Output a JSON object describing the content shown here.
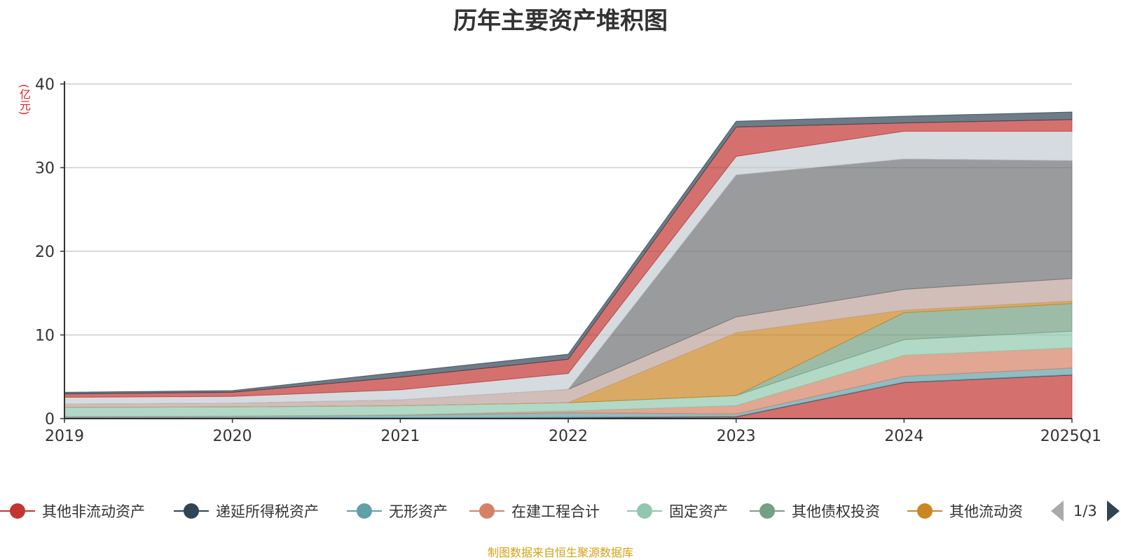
{
  "chart_data": {
    "type": "area",
    "title": "历年主要资产堆积图",
    "ylabel": "(亿元)",
    "xlabel": "",
    "stacked": true,
    "x": [
      "2019",
      "2020",
      "2021",
      "2022",
      "2023",
      "2024",
      "2025Q1"
    ],
    "ylim": [
      0,
      40
    ],
    "yticks": [
      0,
      10,
      20,
      30,
      40
    ],
    "grid": true,
    "series": [
      {
        "name": "其他非流动资产",
        "color": "#c23531",
        "values": [
          0.05,
          0.05,
          0.05,
          0.1,
          0.2,
          4.3,
          5.2
        ],
        "in_legend": true
      },
      {
        "name": "递延所得税资产",
        "color": "#2f4554",
        "values": [
          0.05,
          0.05,
          0.05,
          0.05,
          0.05,
          0.05,
          0.05
        ],
        "in_legend": true
      },
      {
        "name": "无形资产",
        "color": "#61a0a8",
        "values": [
          0.1,
          0.15,
          0.3,
          0.55,
          0.3,
          0.7,
          0.8
        ],
        "in_legend": true
      },
      {
        "name": "在建工程合计",
        "color": "#d48265",
        "values": [
          0.05,
          0.05,
          0.05,
          0.2,
          1.0,
          2.5,
          2.4
        ],
        "in_legend": true
      },
      {
        "name": "固定资产",
        "color": "#91c7ae",
        "values": [
          1.1,
          1.1,
          1.1,
          1.0,
          1.2,
          1.9,
          2.0
        ],
        "in_legend": true
      },
      {
        "name": "其他债权投资",
        "color": "#749f83",
        "values": [
          0,
          0,
          0,
          0,
          0,
          3.2,
          3.3
        ],
        "in_legend": true
      },
      {
        "name": "其他流动资产",
        "color": "#ca8622",
        "values": [
          0,
          0,
          0,
          0,
          7.5,
          0.3,
          0.3
        ],
        "in_legend": true
      },
      {
        "name": "",
        "color": "#bda29a",
        "values": [
          0.4,
          0.45,
          0.7,
          1.6,
          1.9,
          2.5,
          2.7
        ],
        "in_legend": false
      },
      {
        "name": "",
        "color": "#6e7074",
        "values": [
          0,
          0,
          0,
          0,
          17.0,
          15.6,
          14.1
        ],
        "in_legend": false
      },
      {
        "name": "",
        "color": "#c4ccd3",
        "values": [
          0.8,
          0.8,
          1.2,
          1.9,
          2.2,
          3.3,
          3.5
        ],
        "in_legend": false
      },
      {
        "name": "",
        "color": "#c23531",
        "values": [
          0.4,
          0.5,
          1.5,
          1.7,
          3.5,
          1.0,
          1.4
        ],
        "in_legend": false
      },
      {
        "name": "",
        "color": "#2f4554",
        "values": [
          0.2,
          0.2,
          0.6,
          0.6,
          0.7,
          0.8,
          0.9
        ],
        "in_legend": false
      }
    ]
  },
  "legend": {
    "items": [
      {
        "label": "其他非流动资产",
        "color": "#c23531"
      },
      {
        "label": "递延所得税资产",
        "color": "#2f4554"
      },
      {
        "label": "无形资产",
        "color": "#61a0a8"
      },
      {
        "label": "在建工程合计",
        "color": "#d48265"
      },
      {
        "label": "固定资产",
        "color": "#91c7ae"
      },
      {
        "label": "其他债权投资",
        "color": "#749f83"
      },
      {
        "label": "其他流动资",
        "color": "#ca8622"
      }
    ],
    "page_indicator": "1/3"
  },
  "source_note": "制图数据来自恒生聚源数据库"
}
